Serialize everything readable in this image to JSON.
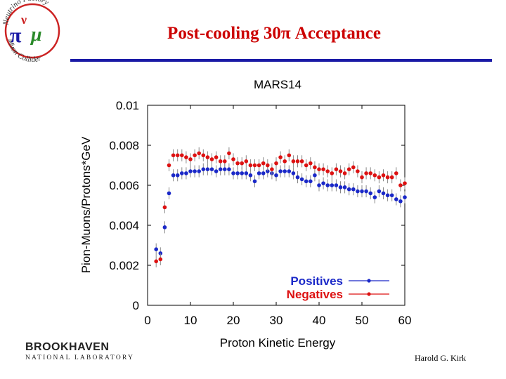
{
  "slide": {
    "title": "Post-cooling  30π Acceptance",
    "author": "Harold G. Kirk",
    "logo_nf": {
      "arc_top": "Neutrino Factory",
      "arc_bottom": "Muon Collider",
      "symbols": [
        "ν",
        "π",
        "μ"
      ]
    },
    "logo_bnl": {
      "top": "BROOKHAVEN",
      "bottom": "NATIONAL LABORATORY"
    }
  },
  "colors": {
    "title": "#cc0000",
    "rule": "#1a1aa6",
    "positives": "#1a28c8",
    "negatives": "#dd1111"
  },
  "chart_data": {
    "type": "scatter",
    "title": "MARS14",
    "xlabel": "Proton Kinetic Energy",
    "ylabel": "Pion-Muons/Protons*GeV",
    "xlim": [
      0,
      60
    ],
    "ylim": [
      0,
      0.01
    ],
    "xticks": [
      0,
      10,
      20,
      30,
      40,
      50,
      60
    ],
    "yticks": [
      0,
      0.002,
      0.004,
      0.006,
      0.008,
      0.01
    ],
    "ytick_labels": [
      "0",
      "0.002",
      "0.004",
      "0.006",
      "0.008",
      "0.01"
    ],
    "legend_position": "bottom-right",
    "series": [
      {
        "name": "Positives",
        "color": "#1a28c8",
        "x": [
          2,
          3,
          4,
          5,
          6,
          7,
          8,
          9,
          10,
          11,
          12,
          13,
          14,
          15,
          16,
          17,
          18,
          19,
          20,
          21,
          22,
          23,
          24,
          25,
          26,
          27,
          28,
          29,
          30,
          31,
          32,
          33,
          34,
          35,
          36,
          37,
          38,
          39,
          40,
          41,
          42,
          43,
          44,
          45,
          46,
          47,
          48,
          49,
          50,
          51,
          52,
          53,
          54,
          55,
          56,
          57,
          58,
          59,
          60
        ],
        "y": [
          0.0028,
          0.0026,
          0.0039,
          0.0056,
          0.0065,
          0.0065,
          0.0066,
          0.0066,
          0.0067,
          0.0067,
          0.0067,
          0.0068,
          0.0068,
          0.0068,
          0.0067,
          0.0068,
          0.0068,
          0.0068,
          0.0066,
          0.0066,
          0.0066,
          0.0066,
          0.0065,
          0.0062,
          0.0066,
          0.0066,
          0.0067,
          0.0066,
          0.0065,
          0.0067,
          0.0067,
          0.0067,
          0.0066,
          0.0064,
          0.0063,
          0.0062,
          0.0062,
          0.0065,
          0.006,
          0.0061,
          0.006,
          0.006,
          0.006,
          0.0059,
          0.0059,
          0.0058,
          0.0058,
          0.0057,
          0.0057,
          0.0057,
          0.0056,
          0.0054,
          0.0057,
          0.0056,
          0.0055,
          0.0055,
          0.0053,
          0.0052,
          0.0054
        ],
        "error": 0.0003
      },
      {
        "name": "Negatives",
        "color": "#dd1111",
        "x": [
          2,
          3,
          4,
          5,
          6,
          7,
          8,
          9,
          10,
          11,
          12,
          13,
          14,
          15,
          16,
          17,
          18,
          19,
          20,
          21,
          22,
          23,
          24,
          25,
          26,
          27,
          28,
          29,
          30,
          31,
          32,
          33,
          34,
          35,
          36,
          37,
          38,
          39,
          40,
          41,
          42,
          43,
          44,
          45,
          46,
          47,
          48,
          49,
          50,
          51,
          52,
          53,
          54,
          55,
          56,
          57,
          58,
          59,
          60
        ],
        "y": [
          0.0022,
          0.0023,
          0.0049,
          0.007,
          0.0075,
          0.0075,
          0.0075,
          0.0074,
          0.0073,
          0.0075,
          0.0076,
          0.0075,
          0.0074,
          0.0073,
          0.0074,
          0.0072,
          0.0072,
          0.0076,
          0.0073,
          0.0071,
          0.0071,
          0.0072,
          0.007,
          0.007,
          0.007,
          0.0071,
          0.007,
          0.0068,
          0.0071,
          0.0074,
          0.0072,
          0.0075,
          0.0072,
          0.0072,
          0.0072,
          0.007,
          0.0071,
          0.0069,
          0.0068,
          0.0068,
          0.0067,
          0.0066,
          0.0068,
          0.0067,
          0.0066,
          0.0068,
          0.0069,
          0.0067,
          0.0064,
          0.0066,
          0.0066,
          0.0065,
          0.0064,
          0.0065,
          0.0064,
          0.0064,
          0.0066,
          0.006,
          0.0061
        ],
        "error": 0.0003
      }
    ]
  }
}
